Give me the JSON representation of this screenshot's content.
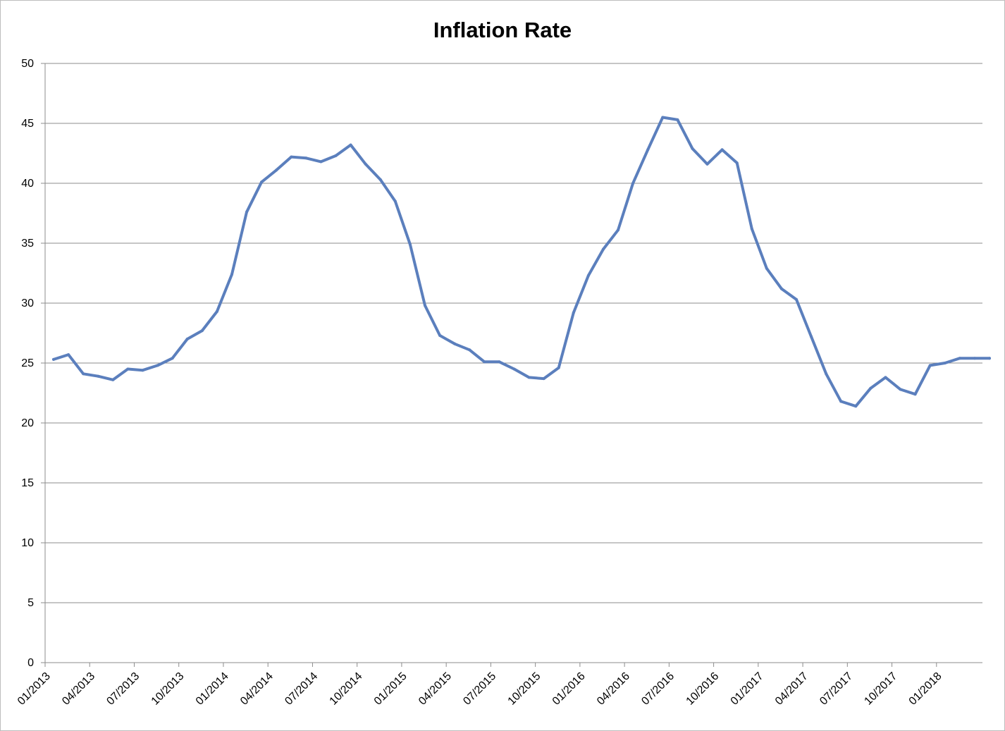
{
  "chart_data": {
    "type": "line",
    "title": "Inflation Rate",
    "xlabel": "",
    "ylabel": "",
    "ylim": [
      0,
      50
    ],
    "yticks": [
      0,
      5,
      10,
      15,
      20,
      25,
      30,
      35,
      40,
      45,
      50
    ],
    "grid": true,
    "legend": "none",
    "x_tick_labels": [
      "01/2013",
      "04/2013",
      "07/2013",
      "10/2013",
      "01/2014",
      "04/2014",
      "07/2014",
      "10/2014",
      "01/2015",
      "04/2015",
      "07/2015",
      "10/2015",
      "01/2016",
      "04/2016",
      "07/2016",
      "10/2016",
      "01/2017",
      "04/2017",
      "07/2017",
      "10/2017",
      "01/2018"
    ],
    "x": [
      "01/2013",
      "02/2013",
      "03/2013",
      "04/2013",
      "05/2013",
      "06/2013",
      "07/2013",
      "08/2013",
      "09/2013",
      "10/2013",
      "11/2013",
      "12/2013",
      "01/2014",
      "02/2014",
      "03/2014",
      "04/2014",
      "05/2014",
      "06/2014",
      "07/2014",
      "08/2014",
      "09/2014",
      "10/2014",
      "11/2014",
      "12/2014",
      "01/2015",
      "02/2015",
      "03/2015",
      "04/2015",
      "05/2015",
      "06/2015",
      "07/2015",
      "08/2015",
      "09/2015",
      "10/2015",
      "11/2015",
      "12/2015",
      "01/2016",
      "02/2016",
      "03/2016",
      "04/2016",
      "05/2016",
      "06/2016",
      "07/2016",
      "08/2016",
      "09/2016",
      "10/2016",
      "11/2016",
      "12/2016",
      "01/2017",
      "02/2017",
      "03/2017",
      "04/2017",
      "05/2017",
      "06/2017",
      "07/2017",
      "08/2017",
      "09/2017",
      "10/2017",
      "11/2017",
      "12/2017",
      "01/2018",
      "02/2018",
      "03/2018",
      "04/2018"
    ],
    "series": [
      {
        "color": "#5b7fbd",
        "values": [
          25.3,
          25.7,
          24.1,
          23.9,
          23.6,
          24.5,
          24.4,
          24.8,
          25.4,
          27.0,
          27.7,
          29.3,
          32.4,
          37.6,
          40.1,
          41.1,
          42.2,
          42.1,
          41.8,
          42.3,
          43.2,
          41.6,
          40.3,
          38.5,
          34.9,
          29.8,
          27.3,
          26.6,
          26.1,
          25.1,
          25.1,
          24.5,
          23.8,
          23.7,
          24.6,
          29.2,
          32.3,
          34.5,
          36.1,
          40.0,
          42.8,
          45.5,
          45.3,
          42.9,
          41.6,
          42.8,
          41.7,
          36.2,
          32.9,
          31.2,
          30.3,
          27.2,
          24.1,
          21.8,
          21.4,
          22.9,
          23.8,
          22.8,
          22.4,
          24.8,
          25.0,
          25.4,
          25.4,
          25.4
        ]
      }
    ]
  }
}
